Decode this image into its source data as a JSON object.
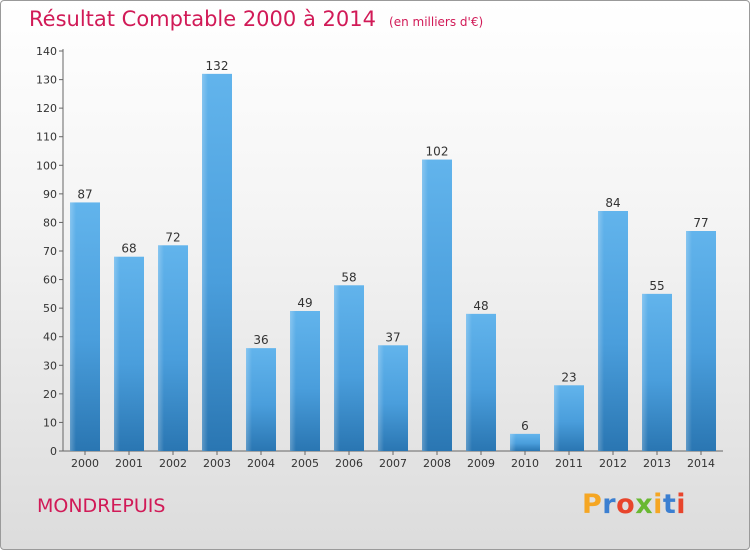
{
  "header": {
    "title": "Résultat Comptable 2000 à 2014",
    "subtitle": "(en milliers d'€)"
  },
  "footer": {
    "commune": "MONDREPUIS",
    "logo_text": "Proxiti"
  },
  "colors": {
    "bar": "#5aaee8",
    "bar_dark": "#2b78b4",
    "title": "#d11a57"
  },
  "chart_data": {
    "type": "bar",
    "title": "Résultat Comptable 2000 à 2014",
    "subtitle": "(en milliers d'€)",
    "categories": [
      "2000",
      "2001",
      "2002",
      "2003",
      "2004",
      "2005",
      "2006",
      "2007",
      "2008",
      "2009",
      "2010",
      "2011",
      "2012",
      "2013",
      "2014"
    ],
    "values": [
      87,
      68,
      72,
      132,
      36,
      49,
      58,
      37,
      102,
      48,
      6,
      23,
      84,
      55,
      77
    ],
    "ylim": [
      0,
      140
    ],
    "yticks": [
      0,
      10,
      20,
      30,
      40,
      50,
      60,
      70,
      80,
      90,
      100,
      110,
      120,
      130,
      140
    ],
    "grid": false,
    "data_labels": true
  }
}
